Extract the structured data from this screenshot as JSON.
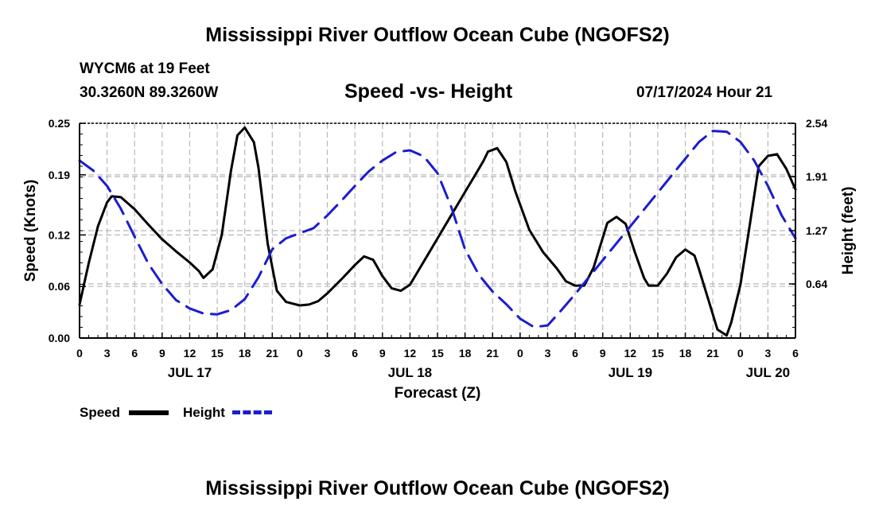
{
  "page": {
    "title": "Mississippi River Outflow Ocean Cube (NGOFS2)",
    "bottom_title": "Mississippi River Outflow Ocean Cube (NGOFS2)",
    "station": "WYCM6 at 19 Feet",
    "coordinates": "30.3260N  89.3260W",
    "subtitle": "Speed -vs- Height",
    "datetime": "07/17/2024 Hour 21"
  },
  "legend": {
    "speed_label": "Speed",
    "height_label": "Height"
  },
  "colors": {
    "speed": "#000000",
    "height": "#1c1cd0",
    "grid": "#b8b8b8"
  },
  "chart_data": {
    "type": "line",
    "title": "Speed -vs- Height",
    "xlabel": "Forecast (Z)",
    "ylabel": "Speed (Knots)",
    "y2label": "Height (feet)",
    "x_unit": "hours since Jul 17 00Z",
    "xlim": [
      0,
      78
    ],
    "ylim": [
      0,
      0.25
    ],
    "y2lim": [
      0,
      2.54
    ],
    "x_ticks": [
      0,
      3,
      6,
      9,
      12,
      15,
      18,
      21,
      24,
      27,
      30,
      33,
      36,
      39,
      42,
      45,
      48,
      51,
      54,
      57,
      60,
      63,
      66,
      69,
      72,
      75,
      78
    ],
    "x_tick_labels": [
      "0",
      "3",
      "6",
      "9",
      "12",
      "15",
      "18",
      "21",
      "0",
      "3",
      "6",
      "9",
      "12",
      "15",
      "18",
      "21",
      "0",
      "3",
      "6",
      "9",
      "12",
      "15",
      "18",
      "21",
      "0",
      "3",
      "6"
    ],
    "date_labels": [
      {
        "x": 12,
        "label": "JUL 17"
      },
      {
        "x": 36,
        "label": "JUL 18"
      },
      {
        "x": 60,
        "label": "JUL 19"
      },
      {
        "x": 75,
        "label": "JUL 20"
      }
    ],
    "y_ticks": [
      0.0,
      0.06,
      0.12,
      0.19,
      0.25
    ],
    "y_tick_labels": [
      "0.00",
      "0.06",
      "0.12",
      "0.19",
      "0.25"
    ],
    "y2_ticks": [
      0.64,
      1.27,
      1.91,
      2.54
    ],
    "y2_tick_labels": [
      "0.64",
      "1.27",
      "1.91",
      "2.54"
    ],
    "grid": true,
    "series": [
      {
        "name": "Speed",
        "axis": "left",
        "style": "solid",
        "x": [
          0,
          1,
          2,
          3,
          3.5,
          4.5,
          6,
          7.5,
          9,
          10.5,
          12,
          13,
          13.5,
          14.5,
          15.5,
          16.5,
          17.2,
          18,
          19,
          19.5,
          20.5,
          21.5,
          22.5,
          24,
          25,
          26,
          27,
          28.5,
          30,
          31,
          32,
          33,
          34,
          35,
          36,
          37,
          38,
          39,
          40,
          41,
          42,
          43,
          44,
          44.5,
          45.5,
          46.5,
          47.5,
          49,
          50.5,
          52,
          53,
          54,
          55,
          56,
          57.5,
          58.5,
          59.5,
          60.5,
          61.5,
          62,
          63,
          64,
          65,
          66,
          67,
          67.5,
          68.5,
          69.5,
          70.5,
          71,
          72,
          73,
          74,
          75,
          76,
          77,
          78
        ],
        "values": [
          0.039,
          0.087,
          0.13,
          0.158,
          0.165,
          0.164,
          0.15,
          0.132,
          0.115,
          0.101,
          0.088,
          0.078,
          0.07,
          0.08,
          0.12,
          0.195,
          0.236,
          0.245,
          0.228,
          0.198,
          0.11,
          0.055,
          0.042,
          0.038,
          0.039,
          0.043,
          0.052,
          0.068,
          0.085,
          0.095,
          0.091,
          0.072,
          0.058,
          0.055,
          0.062,
          0.08,
          0.098,
          0.116,
          0.134,
          0.152,
          0.17,
          0.188,
          0.206,
          0.217,
          0.221,
          0.205,
          0.17,
          0.126,
          0.1,
          0.081,
          0.066,
          0.061,
          0.061,
          0.082,
          0.134,
          0.141,
          0.133,
          0.1,
          0.07,
          0.061,
          0.061,
          0.075,
          0.094,
          0.103,
          0.096,
          0.08,
          0.045,
          0.01,
          0.003,
          0.018,
          0.062,
          0.13,
          0.2,
          0.212,
          0.214,
          0.197,
          0.173
        ]
      },
      {
        "name": "Height",
        "axis": "right",
        "style": "dashed",
        "x": [
          0,
          1.5,
          3,
          4.5,
          6,
          7.5,
          9,
          10.5,
          12,
          13.5,
          15,
          16.5,
          18,
          19.5,
          21,
          22.5,
          24,
          25.5,
          27,
          28.5,
          30,
          31.5,
          33,
          34.5,
          36,
          37.5,
          39,
          40.5,
          42,
          43.5,
          45,
          46.5,
          48,
          49.5,
          51,
          52.5,
          54,
          55.5,
          57,
          58.5,
          60,
          61.5,
          63,
          64.5,
          66,
          67.5,
          69,
          70.5,
          72,
          73.5,
          75,
          76.5,
          78
        ],
        "values": [
          2.1,
          1.98,
          1.8,
          1.53,
          1.2,
          0.88,
          0.64,
          0.45,
          0.35,
          0.29,
          0.28,
          0.33,
          0.46,
          0.72,
          1.05,
          1.18,
          1.24,
          1.3,
          1.45,
          1.62,
          1.8,
          1.97,
          2.1,
          2.2,
          2.22,
          2.15,
          1.95,
          1.55,
          1.05,
          0.75,
          0.55,
          0.4,
          0.23,
          0.13,
          0.15,
          0.33,
          0.52,
          0.72,
          0.92,
          1.12,
          1.32,
          1.52,
          1.72,
          1.92,
          2.12,
          2.32,
          2.45,
          2.44,
          2.32,
          2.1,
          1.8,
          1.45,
          1.18
        ]
      }
    ]
  }
}
